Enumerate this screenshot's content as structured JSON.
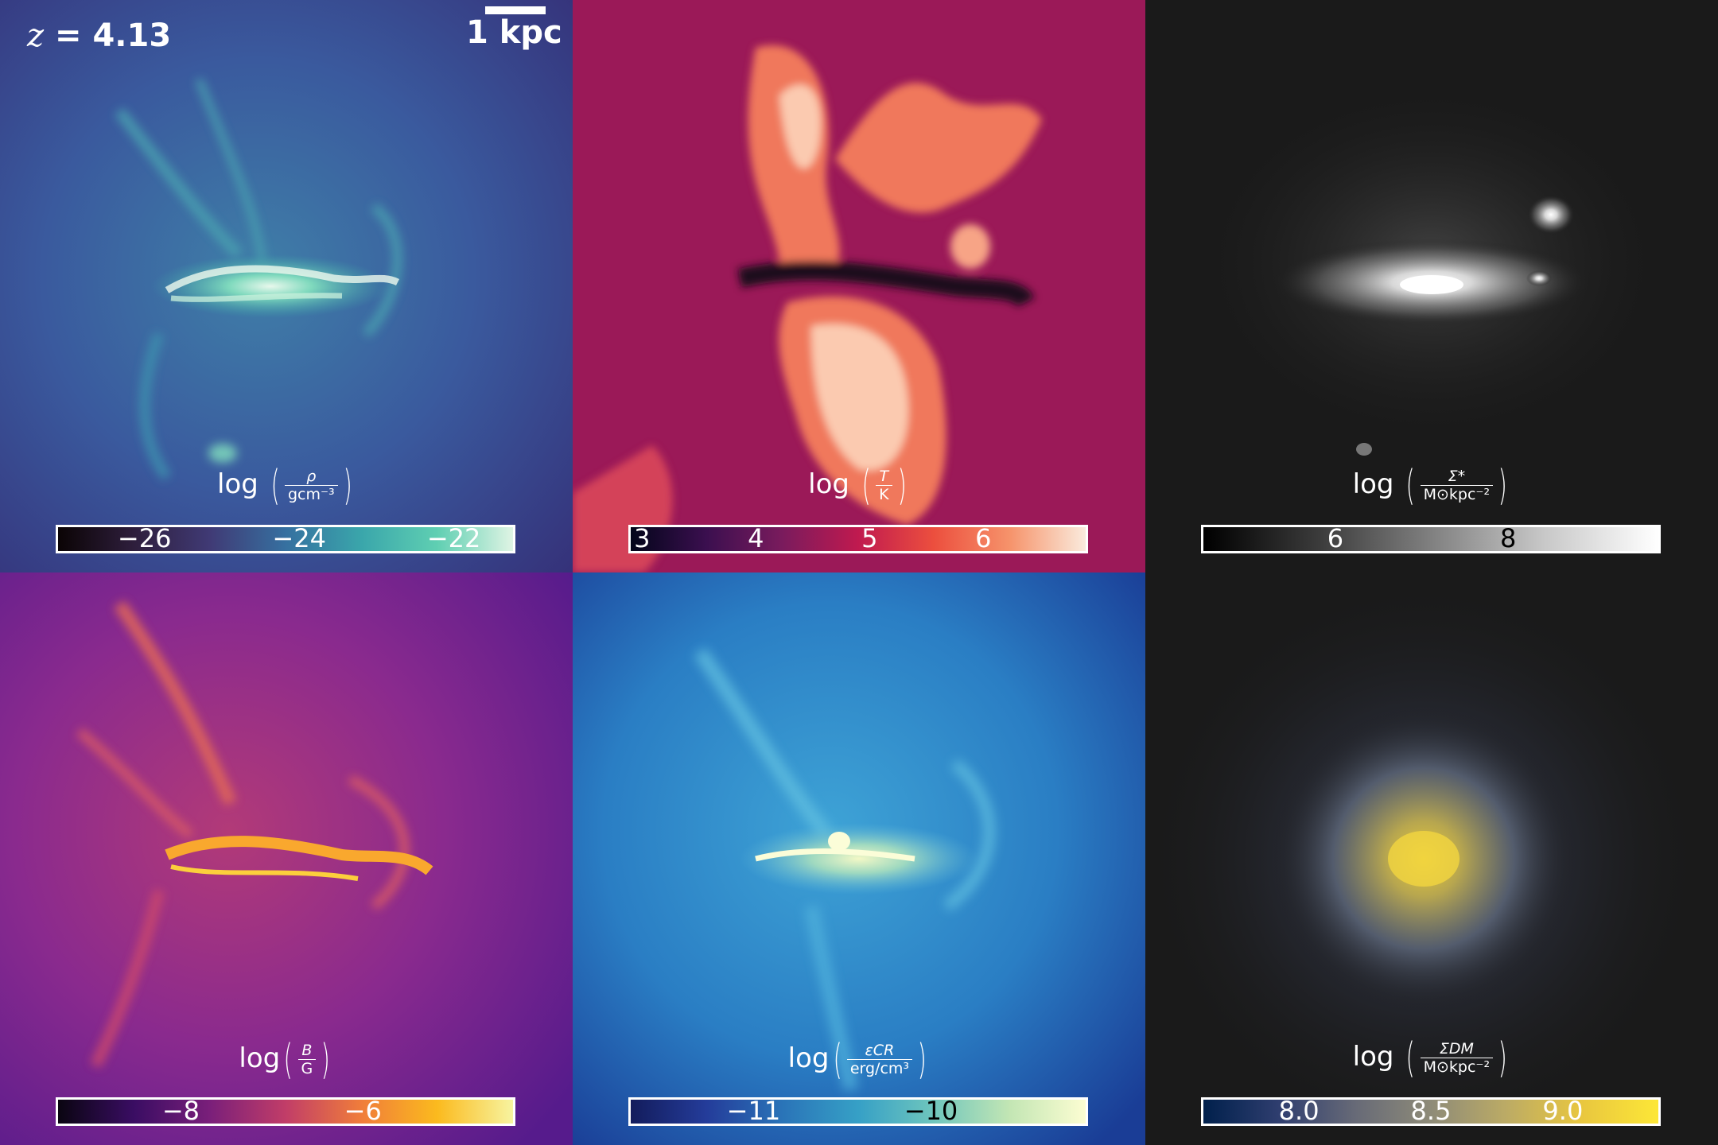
{
  "redshift": {
    "symbol": "z",
    "equals": " = ",
    "value": "4.13"
  },
  "scale_bar": {
    "label": "1 kpc"
  },
  "panels": [
    {
      "quantity": "gas-density",
      "label_prefix": "log",
      "frac_num": "ρ",
      "frac_den": "gcm⁻³",
      "ticks": [
        "−26",
        "−24",
        "−22"
      ],
      "colormap": "mako"
    },
    {
      "quantity": "temperature",
      "label_prefix": "log",
      "frac_num": "T",
      "frac_den": "K",
      "ticks": [
        "3",
        "4",
        "5",
        "6"
      ],
      "colormap": "rocket"
    },
    {
      "quantity": "stellar-surface-density",
      "label_prefix": "log",
      "frac_num": "Σ*",
      "frac_den": "M⊙kpc⁻²",
      "ticks": [
        "6",
        "8"
      ],
      "colormap": "greys"
    },
    {
      "quantity": "magnetic-field",
      "label_prefix": "log",
      "frac_num": "B",
      "frac_den": "G",
      "ticks": [
        "−8",
        "−6"
      ],
      "colormap": "plasma"
    },
    {
      "quantity": "cosmic-ray-energy-density",
      "label_prefix": "log",
      "frac_num": "εCR",
      "frac_den": "erg/cm³",
      "ticks": [
        "−11",
        "−10"
      ],
      "colormap": "YlGnBu"
    },
    {
      "quantity": "dark-matter-surface-density",
      "label_prefix": "log",
      "frac_num": "ΣDM",
      "frac_den": "M⊙kpc⁻²",
      "ticks": [
        "8.0",
        "8.5",
        "9.0"
      ],
      "colormap": "cividis"
    }
  ],
  "colors": {
    "background_dark": "#1a1a1a",
    "text": "#ffffff"
  }
}
